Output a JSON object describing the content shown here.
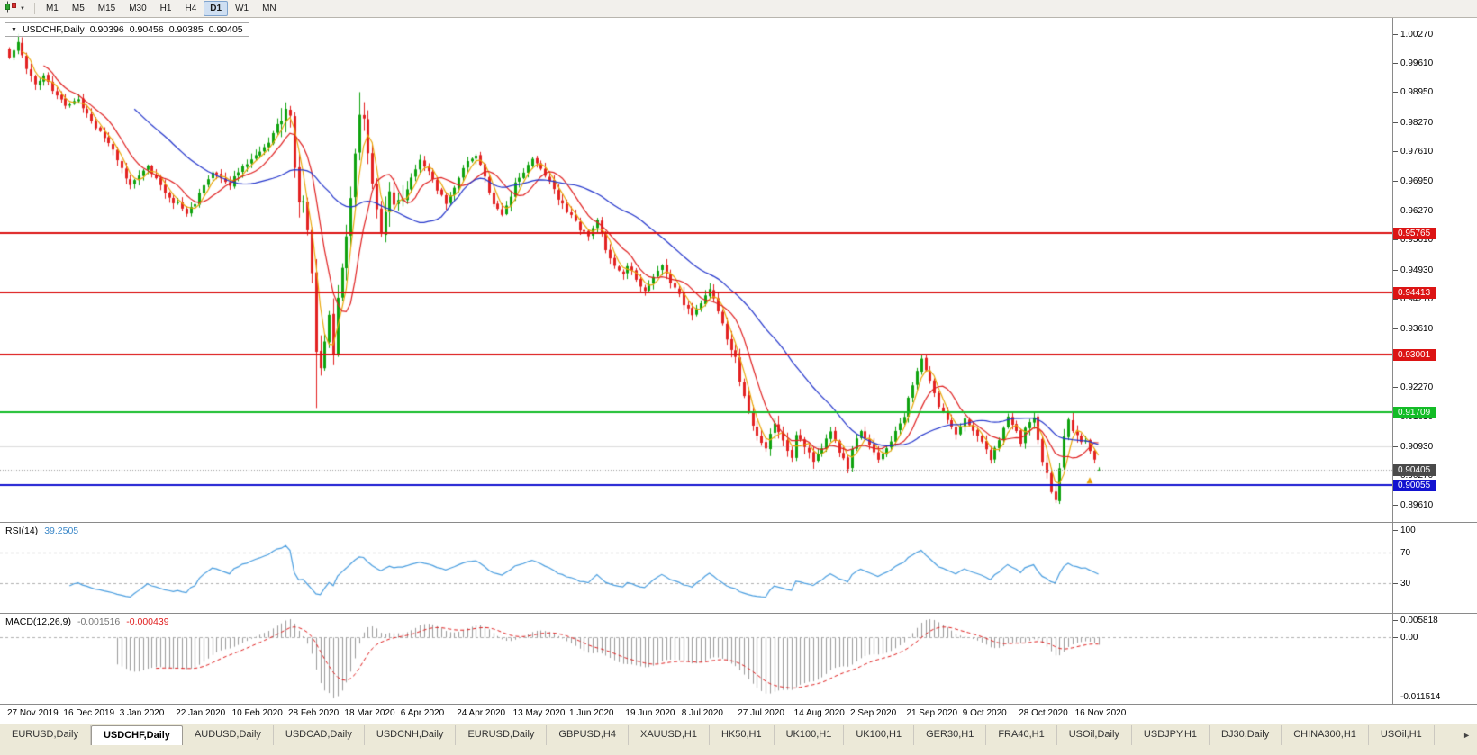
{
  "toolbar": {
    "timeframes": [
      "M1",
      "M5",
      "M15",
      "M30",
      "H1",
      "H4",
      "D1",
      "W1",
      "MN"
    ],
    "active_timeframe": "D1"
  },
  "chart_title": {
    "symbol": "USDCHF,Daily",
    "open": "0.90396",
    "high": "0.90456",
    "low": "0.90385",
    "close": "0.90405"
  },
  "rsi_panel": {
    "name": "RSI(14)",
    "value": "39.2505",
    "axis_labels": [
      "100",
      "70",
      "30"
    ]
  },
  "macd_panel": {
    "name": "MACD(12,26,9)",
    "value_main": "-0.001516",
    "value_signal": "-0.000439",
    "axis_labels": [
      "0.005818",
      "0.00",
      "-0.011514"
    ]
  },
  "tabs": {
    "items": [
      "EURUSD,Daily",
      "USDCHF,Daily",
      "AUDUSD,Daily",
      "USDCAD,Daily",
      "USDCNH,Daily",
      "EURUSD,Daily",
      "GBPUSD,H4",
      "XAUUSD,H1",
      "HK50,H1",
      "UK100,H1",
      "UK100,H1",
      "GER30,H1",
      "FRA40,H1",
      "USOil,Daily",
      "USDJPY,H1",
      "DJ30,Daily",
      "CHINA300,H1",
      "USOil,H1"
    ],
    "active_index": 1,
    "scroll_right_icon": "►"
  },
  "chart_data": {
    "type": "candlestick",
    "symbol": "USDCHF",
    "timeframe": "Daily",
    "bars": 253,
    "x_labels": [
      "27 Nov 2019",
      "16 Dec 2019",
      "3 Jan 2020",
      "22 Jan 2020",
      "10 Feb 2020",
      "28 Feb 2020",
      "18 Mar 2020",
      "6 Apr 2020",
      "24 Apr 2020",
      "13 May 2020",
      "1 Jun 2020",
      "19 Jun 2020",
      "8 Jul 2020",
      "27 Jul 2020",
      "14 Aug 2020",
      "2 Sep 2020",
      "21 Sep 2020",
      "9 Oct 2020",
      "28 Oct 2020",
      "16 Nov 2020"
    ],
    "x_label_every_bars": 13,
    "y_axis_labels": [
      "1.00270",
      "0.99610",
      "0.98950",
      "0.98270",
      "0.97610",
      "0.96950",
      "0.96270",
      "0.95610",
      "0.94930",
      "0.94270",
      "0.93610",
      "0.92930",
      "0.92270",
      "0.91610",
      "0.90930",
      "0.90270",
      "0.89610"
    ],
    "price_range": {
      "max": 1.0063,
      "min": 0.8922
    },
    "current_price": {
      "value": 0.90405,
      "label": "0.90405",
      "tag_color": "#4a4a4a"
    },
    "horizontal_lines": [
      {
        "price": 0.95765,
        "label": "0.95765",
        "color": "#dc1414",
        "width": 2,
        "tag": true
      },
      {
        "price": 0.94413,
        "label": "0.94413",
        "color": "#dc1414",
        "width": 2,
        "tag": true
      },
      {
        "price": 0.93001,
        "label": "0.93001",
        "color": "#dc1414",
        "width": 2,
        "tag": true
      },
      {
        "price": 0.91709,
        "label": "0.91709",
        "color": "#13bc26",
        "width": 2,
        "tag": true
      },
      {
        "price": 0.90055,
        "label": "0.90055",
        "color": "#1212d0",
        "width": 2,
        "tag": true
      },
      {
        "price": 0.9093,
        "label": "",
        "color": "#dcdcdc",
        "width": 1,
        "tag": false
      }
    ],
    "moving_averages": [
      {
        "period": 4,
        "color": "#eaa80a"
      },
      {
        "period": 9,
        "color": "#e02020"
      },
      {
        "period": 30,
        "color": "#2335cc"
      }
    ],
    "candle_colors": {
      "up": "#0fa30f",
      "down": "#e32222"
    },
    "rsi": {
      "period": 14,
      "color": "#4a9ee0",
      "levels": [
        70,
        30
      ],
      "last_value": 39.2505
    },
    "macd": {
      "fast": 12,
      "slow": 26,
      "signal": 9,
      "histogram_color": "#9a9a9a",
      "signal_color": "#e02020",
      "last_main": -0.001516,
      "last_signal": -0.000439
    },
    "marker": {
      "bar": 250,
      "price": 0.9015,
      "shape": "up-arrow",
      "color": "#e8a000"
    },
    "close_waypoints": [
      [
        0,
        0.9975
      ],
      [
        2,
        1.0005
      ],
      [
        4,
        0.9945
      ],
      [
        6,
        0.9915
      ],
      [
        8,
        0.993
      ],
      [
        10,
        0.99
      ],
      [
        13,
        0.9865
      ],
      [
        16,
        0.988
      ],
      [
        18,
        0.9845
      ],
      [
        20,
        0.9815
      ],
      [
        22,
        0.9795
      ],
      [
        24,
        0.9765
      ],
      [
        26,
        0.972
      ],
      [
        28,
        0.9685
      ],
      [
        30,
        0.971
      ],
      [
        32,
        0.9725
      ],
      [
        34,
        0.97
      ],
      [
        36,
        0.9665
      ],
      [
        38,
        0.964
      ],
      [
        39,
        0.965
      ],
      [
        41,
        0.9618
      ],
      [
        43,
        0.9645
      ],
      [
        45,
        0.9685
      ],
      [
        47,
        0.9715
      ],
      [
        49,
        0.97
      ],
      [
        51,
        0.9685
      ],
      [
        52,
        0.9705
      ],
      [
        54,
        0.9725
      ],
      [
        56,
        0.9745
      ],
      [
        58,
        0.976
      ],
      [
        60,
        0.978
      ],
      [
        62,
        0.982
      ],
      [
        64,
        0.985
      ],
      [
        65,
        0.984
      ],
      [
        66,
        0.973
      ],
      [
        67,
        0.9655
      ],
      [
        68,
        0.964
      ],
      [
        69,
        0.958
      ],
      [
        70,
        0.948
      ],
      [
        71,
        0.93
      ],
      [
        72,
        0.926
      ],
      [
        73,
        0.934
      ],
      [
        74,
        0.94
      ],
      [
        75,
        0.931
      ],
      [
        76,
        0.943
      ],
      [
        77,
        0.95
      ],
      [
        78,
        0.956
      ],
      [
        79,
        0.965
      ],
      [
        80,
        0.975
      ],
      [
        81,
        0.985
      ],
      [
        82,
        0.984
      ],
      [
        83,
        0.976
      ],
      [
        84,
        0.968
      ],
      [
        85,
        0.962
      ],
      [
        86,
        0.958
      ],
      [
        87,
        0.963
      ],
      [
        88,
        0.968
      ],
      [
        89,
        0.964
      ],
      [
        91,
        0.966
      ],
      [
        93,
        0.97
      ],
      [
        95,
        0.974
      ],
      [
        97,
        0.9715
      ],
      [
        99,
        0.9675
      ],
      [
        101,
        0.9645
      ],
      [
        103,
        0.968
      ],
      [
        104,
        0.97
      ],
      [
        106,
        0.974
      ],
      [
        108,
        0.9755
      ],
      [
        110,
        0.97
      ],
      [
        112,
        0.964
      ],
      [
        114,
        0.9615
      ],
      [
        116,
        0.966
      ],
      [
        117,
        0.969
      ],
      [
        119,
        0.9715
      ],
      [
        121,
        0.974
      ],
      [
        123,
        0.972
      ],
      [
        125,
        0.969
      ],
      [
        127,
        0.9655
      ],
      [
        129,
        0.9625
      ],
      [
        130,
        0.9615
      ],
      [
        132,
        0.9585
      ],
      [
        134,
        0.957
      ],
      [
        136,
        0.961
      ],
      [
        138,
        0.954
      ],
      [
        140,
        0.9505
      ],
      [
        142,
        0.948
      ],
      [
        143,
        0.9505
      ],
      [
        145,
        0.947
      ],
      [
        147,
        0.9445
      ],
      [
        149,
        0.948
      ],
      [
        151,
        0.9505
      ],
      [
        153,
        0.9465
      ],
      [
        155,
        0.9435
      ],
      [
        156,
        0.9415
      ],
      [
        158,
        0.939
      ],
      [
        160,
        0.942
      ],
      [
        162,
        0.945
      ],
      [
        164,
        0.94
      ],
      [
        166,
        0.934
      ],
      [
        168,
        0.929
      ],
      [
        169,
        0.924
      ],
      [
        171,
        0.917
      ],
      [
        173,
        0.9115
      ],
      [
        175,
        0.9085
      ],
      [
        177,
        0.915
      ],
      [
        179,
        0.9105
      ],
      [
        181,
        0.907
      ],
      [
        182,
        0.912
      ],
      [
        184,
        0.9095
      ],
      [
        186,
        0.9055
      ],
      [
        188,
        0.909
      ],
      [
        190,
        0.9125
      ],
      [
        192,
        0.908
      ],
      [
        194,
        0.9045
      ],
      [
        195,
        0.909
      ],
      [
        197,
        0.913
      ],
      [
        199,
        0.9095
      ],
      [
        201,
        0.906
      ],
      [
        203,
        0.909
      ],
      [
        205,
        0.9125
      ],
      [
        207,
        0.916
      ],
      [
        208,
        0.92
      ],
      [
        210,
        0.926
      ],
      [
        211,
        0.9292
      ],
      [
        213,
        0.9245
      ],
      [
        215,
        0.9185
      ],
      [
        217,
        0.915
      ],
      [
        219,
        0.912
      ],
      [
        221,
        0.916
      ],
      [
        223,
        0.913
      ],
      [
        225,
        0.91
      ],
      [
        227,
        0.9065
      ],
      [
        229,
        0.911
      ],
      [
        231,
        0.916
      ],
      [
        233,
        0.913
      ],
      [
        234,
        0.91
      ],
      [
        235,
        0.9135
      ],
      [
        237,
        0.9155
      ],
      [
        239,
        0.906
      ],
      [
        241,
        0.8995
      ],
      [
        242,
        0.8975
      ],
      [
        243,
        0.904
      ],
      [
        244,
        0.912
      ],
      [
        245,
        0.9155
      ],
      [
        246,
        0.913
      ],
      [
        247,
        0.912
      ],
      [
        248,
        0.9105
      ],
      [
        249,
        0.911
      ],
      [
        250,
        0.9085
      ],
      [
        251,
        0.906
      ],
      [
        252,
        0.90405
      ]
    ],
    "wick_overrides": [
      {
        "bar": 2,
        "high": 1.0027
      },
      {
        "bar": 41,
        "low": 0.9613
      },
      {
        "bar": 64,
        "high": 0.9872
      },
      {
        "bar": 71,
        "low": 0.918
      },
      {
        "bar": 81,
        "high": 0.9895
      },
      {
        "bar": 211,
        "high": 0.93
      },
      {
        "bar": 242,
        "low": 0.8965
      },
      {
        "bar": 252,
        "open": 0.90396,
        "high": 0.90456,
        "low": 0.90385,
        "close": 0.90405
      }
    ]
  }
}
